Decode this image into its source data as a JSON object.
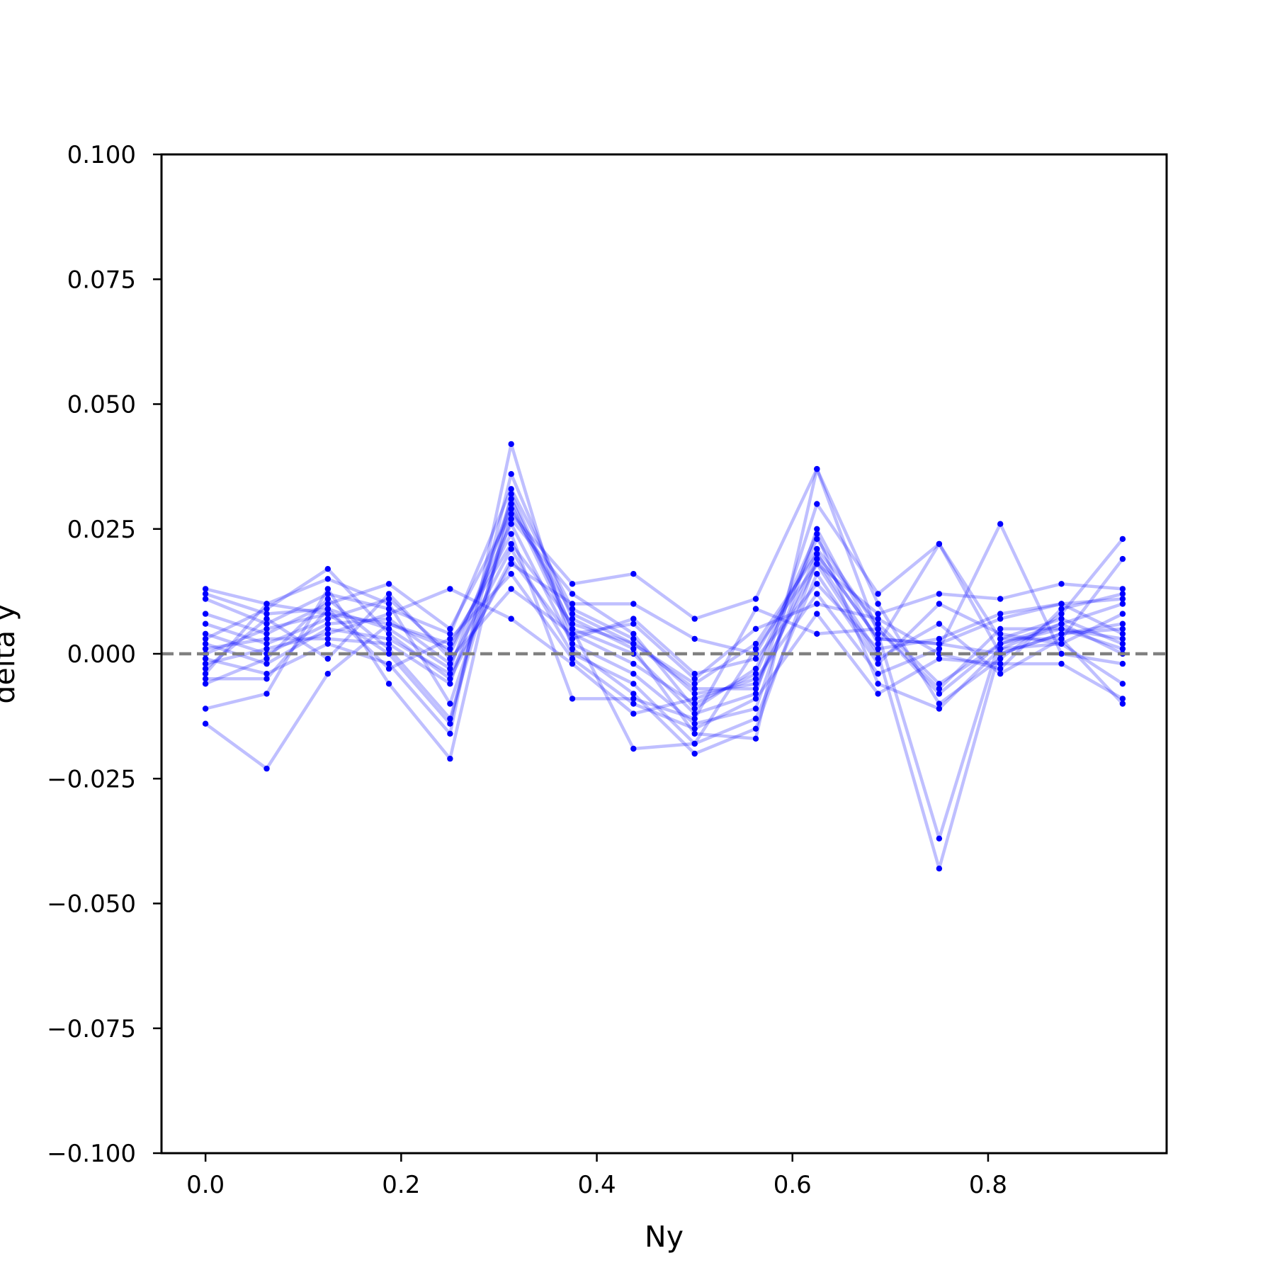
{
  "chart_data": {
    "type": "line",
    "title": "",
    "xlabel": "Ny",
    "ylabel": "delta y",
    "xlim": [
      -0.045,
      0.9825
    ],
    "ylim": [
      -0.1,
      0.1
    ],
    "x_ticks": [
      {
        "value": 0.0,
        "label": "0.0"
      },
      {
        "value": 0.2,
        "label": "0.2"
      },
      {
        "value": 0.4,
        "label": "0.4"
      },
      {
        "value": 0.6,
        "label": "0.6"
      },
      {
        "value": 0.8,
        "label": "0.8"
      }
    ],
    "y_ticks": [
      {
        "value": 0.1,
        "label": "0.100"
      },
      {
        "value": 0.075,
        "label": "0.075"
      },
      {
        "value": 0.05,
        "label": "0.050"
      },
      {
        "value": 0.025,
        "label": "0.025"
      },
      {
        "value": 0.0,
        "label": "0.000"
      },
      {
        "value": -0.025,
        "label": "−0.025"
      },
      {
        "value": -0.05,
        "label": "−0.050"
      },
      {
        "value": -0.075,
        "label": "−0.075"
      },
      {
        "value": -0.1,
        "label": "−0.100"
      }
    ],
    "reference_line": {
      "y": 0.0,
      "style": "dashed",
      "color": "#808080"
    },
    "series_color": "#0000ff",
    "line_alpha": 0.25,
    "grid": false,
    "x": [
      0.0,
      0.0625,
      0.125,
      0.1875,
      0.25,
      0.3125,
      0.375,
      0.4375,
      0.5,
      0.5625,
      0.625,
      0.6875,
      0.75,
      0.8125,
      0.875,
      0.9375
    ],
    "series": [
      {
        "values": [
          0.013,
          0.01,
          0.008,
          0.006,
          0.002,
          0.022,
          0.006,
          0.002,
          -0.006,
          0.002,
          0.02,
          0.003,
          0.002,
          0.0,
          0.004,
          0.006
        ]
      },
      {
        "values": [
          0.012,
          0.008,
          0.009,
          0.005,
          -0.003,
          0.03,
          0.004,
          -0.002,
          -0.01,
          -0.004,
          0.023,
          0.005,
          -0.008,
          0.002,
          0.006,
          0.01
        ]
      },
      {
        "values": [
          0.011,
          0.006,
          0.012,
          0.009,
          0.004,
          0.033,
          0.009,
          0.003,
          -0.008,
          -0.006,
          0.018,
          0.008,
          0.012,
          0.011,
          0.014,
          0.013
        ]
      },
      {
        "values": [
          0.008,
          0.004,
          0.01,
          0.014,
          0.005,
          0.028,
          0.014,
          0.016,
          0.007,
          0.011,
          0.037,
          0.01,
          -0.01,
          -0.001,
          0.008,
          0.023
        ]
      },
      {
        "values": [
          0.006,
          0.002,
          0.007,
          0.011,
          0.0,
          0.026,
          0.002,
          -0.004,
          -0.014,
          -0.011,
          0.025,
          0.002,
          0.022,
          0.003,
          0.003,
          0.019
        ]
      },
      {
        "values": [
          0.004,
          0.0,
          0.006,
          0.007,
          -0.002,
          0.021,
          0.0,
          -0.006,
          -0.018,
          -0.013,
          0.016,
          -0.002,
          0.01,
          0.004,
          0.002,
          0.008
        ]
      },
      {
        "values": [
          0.003,
          0.009,
          0.017,
          0.004,
          -0.005,
          0.019,
          0.003,
          0.007,
          -0.004,
          -0.001,
          0.014,
          0.001,
          0.003,
          0.008,
          0.01,
          0.011
        ]
      },
      {
        "values": [
          0.002,
          -0.002,
          0.005,
          0.003,
          -0.004,
          0.018,
          0.01,
          0.01,
          0.003,
          0.0,
          0.021,
          0.006,
          -0.006,
          0.002,
          0.005,
          0.003
        ]
      },
      {
        "values": [
          0.001,
          0.003,
          0.003,
          0.002,
          -0.006,
          0.031,
          0.005,
          0.0,
          -0.012,
          -0.008,
          0.03,
          0.012,
          0.022,
          0.0,
          0.004,
          0.005
        ]
      },
      {
        "values": [
          0.0,
          0.005,
          0.008,
          0.0,
          -0.014,
          0.036,
          0.007,
          0.001,
          -0.016,
          -0.017,
          0.037,
          0.004,
          -0.037,
          0.003,
          0.007,
          0.002
        ]
      },
      {
        "values": [
          -0.001,
          -0.004,
          0.002,
          -0.002,
          -0.016,
          0.042,
          0.001,
          -0.008,
          -0.02,
          -0.015,
          0.019,
          0.0,
          -0.043,
          0.001,
          0.006,
          0.0
        ]
      },
      {
        "values": [
          -0.002,
          0.001,
          0.004,
          0.008,
          0.013,
          0.007,
          -0.002,
          -0.012,
          -0.009,
          -0.005,
          0.012,
          -0.004,
          0.001,
          0.026,
          0.0,
          -0.002
        ]
      },
      {
        "values": [
          -0.003,
          0.007,
          -0.001,
          0.012,
          -0.001,
          0.013,
          0.004,
          0.006,
          -0.005,
          0.005,
          0.01,
          0.007,
          0.0,
          -0.003,
          0.009,
          0.012
        ]
      },
      {
        "values": [
          -0.004,
          0.01,
          0.015,
          0.01,
          -0.01,
          0.027,
          0.012,
          0.004,
          -0.011,
          -0.003,
          0.024,
          -0.006,
          -0.011,
          0.001,
          0.002,
          -0.006
        ]
      },
      {
        "values": [
          -0.005,
          -0.005,
          0.009,
          -0.003,
          0.003,
          0.016,
          -0.001,
          -0.01,
          -0.015,
          -0.009,
          0.008,
          -0.008,
          -0.001,
          -0.002,
          -0.002,
          -0.009
        ]
      },
      {
        "values": [
          -0.006,
          -0.001,
          0.011,
          0.001,
          -0.013,
          0.029,
          0.008,
          0.002,
          -0.007,
          -0.007,
          0.02,
          0.003,
          0.002,
          0.007,
          0.01,
          0.004
        ]
      },
      {
        "values": [
          -0.011,
          -0.008,
          0.013,
          -0.006,
          -0.021,
          0.032,
          0.005,
          -0.019,
          -0.018,
          0.001,
          0.018,
          -0.001,
          0.006,
          -0.004,
          0.003,
          -0.01
        ]
      },
      {
        "values": [
          -0.014,
          -0.023,
          -0.004,
          0.006,
          0.001,
          0.024,
          -0.009,
          -0.009,
          -0.013,
          0.009,
          0.004,
          0.005,
          -0.007,
          0.005,
          0.005,
          0.001
        ]
      }
    ]
  }
}
